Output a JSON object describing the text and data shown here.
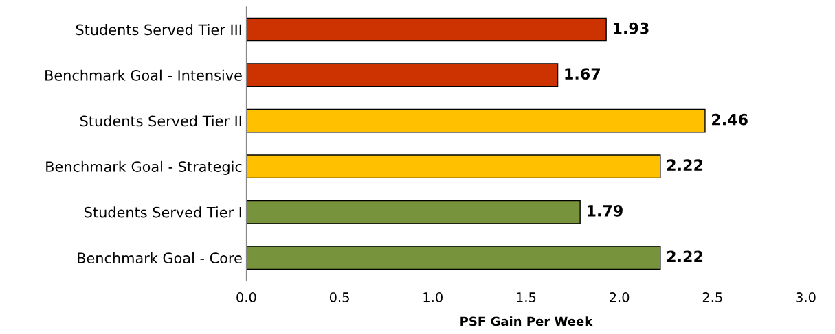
{
  "chart_data": {
    "type": "bar",
    "orientation": "horizontal",
    "xlabel": "PSF Gain Per Week",
    "categories": [
      "Students Served Tier III",
      "Benchmark Goal - Intensive",
      "Students Served Tier II",
      "Benchmark Goal - Strategic",
      "Students Served Tier I",
      "Benchmark Goal - Core"
    ],
    "values": [
      1.93,
      1.67,
      2.46,
      2.22,
      1.79,
      2.22
    ],
    "colors": [
      "#cc3300",
      "#cc3300",
      "#ffc000",
      "#ffc000",
      "#77933c",
      "#77933c"
    ],
    "xlim": [
      0,
      3
    ],
    "xticks": [
      {
        "value": 0,
        "label": "0.0"
      },
      {
        "value": 0.5,
        "label": "0.5"
      },
      {
        "value": 1,
        "label": "1.0"
      },
      {
        "value": 1.5,
        "label": "1.5"
      },
      {
        "value": 2,
        "label": "2.0"
      },
      {
        "value": 2.5,
        "label": "2.5"
      },
      {
        "value": 3,
        "label": "3.0"
      }
    ],
    "data_labels": true,
    "grid": false
  }
}
